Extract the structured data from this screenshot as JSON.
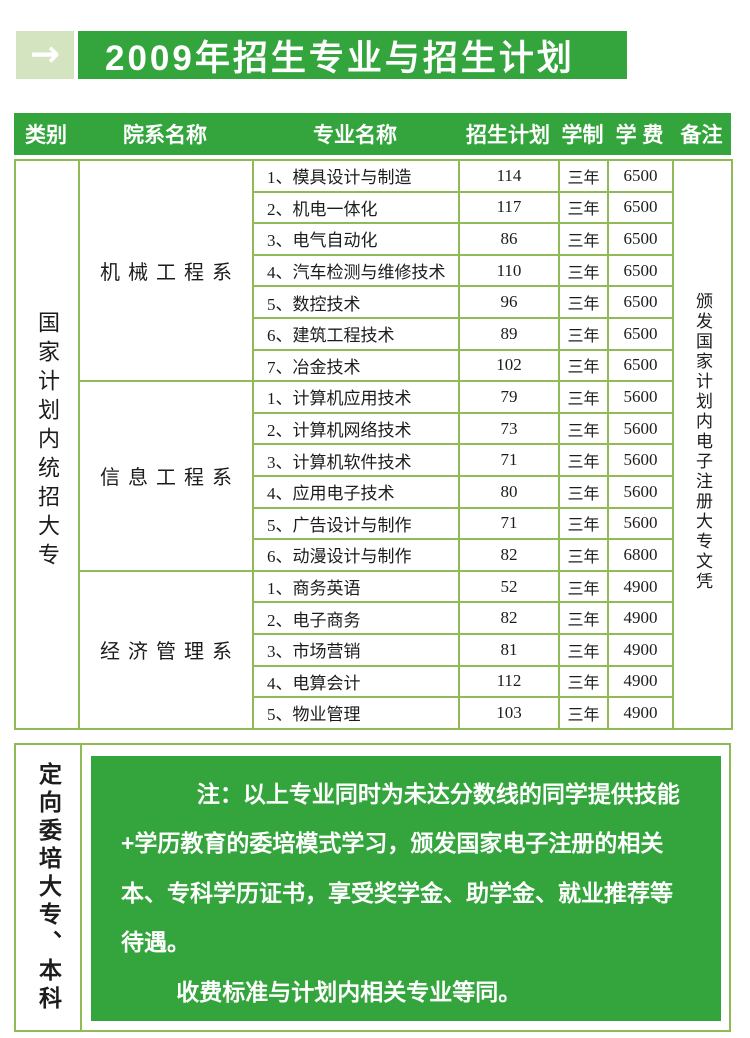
{
  "banner": {
    "arrow": "→",
    "title": "2009年招生专业与招生计划"
  },
  "colors": {
    "green": "#33a53c",
    "light_green": "#d4e4c0",
    "border": "#8fba55"
  },
  "table": {
    "headers": [
      "类别",
      "院系名称",
      "专业名称",
      "招生计划",
      "学制",
      "学 费",
      "备注"
    ],
    "category_label": "国家计划内统招大专",
    "remark_label": "颁发国家计划内电子注册大专文凭",
    "departments": [
      {
        "name": "机械工程系",
        "majors": [
          {
            "name": "1、模具设计与制造",
            "plan": "114",
            "years": "三年",
            "fee": "6500"
          },
          {
            "name": "2、机电一体化",
            "plan": "117",
            "years": "三年",
            "fee": "6500"
          },
          {
            "name": "3、电气自动化",
            "plan": "86",
            "years": "三年",
            "fee": "6500"
          },
          {
            "name": "4、汽车检测与维修技术",
            "plan": "110",
            "years": "三年",
            "fee": "6500"
          },
          {
            "name": "5、数控技术",
            "plan": "96",
            "years": "三年",
            "fee": "6500"
          },
          {
            "name": "6、建筑工程技术",
            "plan": "89",
            "years": "三年",
            "fee": "6500"
          },
          {
            "name": "7、冶金技术",
            "plan": "102",
            "years": "三年",
            "fee": "6500"
          }
        ]
      },
      {
        "name": "信息工程系",
        "majors": [
          {
            "name": "1、计算机应用技术",
            "plan": "79",
            "years": "三年",
            "fee": "5600"
          },
          {
            "name": "2、计算机网络技术",
            "plan": "73",
            "years": "三年",
            "fee": "5600"
          },
          {
            "name": "3、计算机软件技术",
            "plan": "71",
            "years": "三年",
            "fee": "5600"
          },
          {
            "name": "4、应用电子技术",
            "plan": "80",
            "years": "三年",
            "fee": "5600"
          },
          {
            "name": "5、广告设计与制作",
            "plan": "71",
            "years": "三年",
            "fee": "5600"
          },
          {
            "name": "6、动漫设计与制作",
            "plan": "82",
            "years": "三年",
            "fee": "6800"
          }
        ]
      },
      {
        "name": "经济管理系",
        "majors": [
          {
            "name": "1、商务英语",
            "plan": "52",
            "years": "三年",
            "fee": "4900"
          },
          {
            "name": "2、电子商务",
            "plan": "82",
            "years": "三年",
            "fee": "4900"
          },
          {
            "name": "3、市场营销",
            "plan": "81",
            "years": "三年",
            "fee": "4900"
          },
          {
            "name": "4、电算会计",
            "plan": "112",
            "years": "三年",
            "fee": "4900"
          },
          {
            "name": "5、物业管理",
            "plan": "103",
            "years": "三年",
            "fee": "4900"
          }
        ]
      }
    ]
  },
  "bottom": {
    "category_label": "定向委培大专、本科",
    "note_par1": "注：以上专业同时为未达分数线的同学提供技能+学历教育的委培模式学习，颁发国家电子注册的相关本、专科学历证书，享受奖学金、助学金、就业推荐等待遇。",
    "note_par2": "收费标准与计划内相关专业等同。"
  }
}
